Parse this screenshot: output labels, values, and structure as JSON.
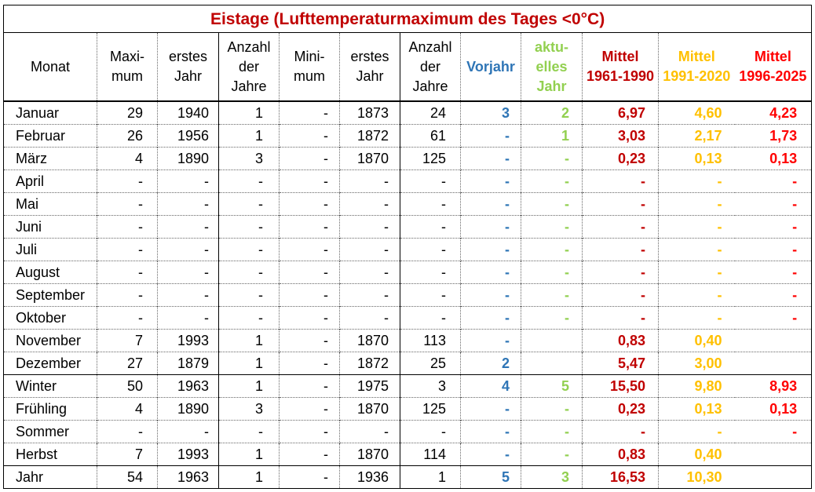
{
  "title": "Eistage (Lufttemperaturmaximum des Tages <0°C)",
  "colors": {
    "title": "#c00000",
    "vorjahr": "#2e75b6",
    "aktuell": "#92d050",
    "mittel_1961_1990": "#c00000",
    "mittel_1991_2020": "#ffc000",
    "mittel_1996_2025": "#ff0000"
  },
  "headers": [
    "Monat",
    "Maxi-\nmum",
    "erstes\nJahr",
    "Anzahl\nder\nJahre",
    "Mini-\nmum",
    "erstes\nJahr",
    "Anzahl\nder\nJahre",
    "Vorjahr",
    "aktu-\nelles\nJahr",
    "Mittel\n1961-1990",
    "Mittel\n1991-2020",
    "Mittel\n1996-2025"
  ],
  "rows": [
    [
      "Januar",
      "29",
      "1940",
      "1",
      "-",
      "1873",
      "24",
      "3",
      "2",
      "6,97",
      "4,60",
      "4,23"
    ],
    [
      "Februar",
      "26",
      "1956",
      "1",
      "-",
      "1872",
      "61",
      "-",
      "1",
      "3,03",
      "2,17",
      "1,73"
    ],
    [
      "März",
      "4",
      "1890",
      "3",
      "-",
      "1870",
      "125",
      "-",
      "-",
      "0,23",
      "0,13",
      "0,13"
    ],
    [
      "April",
      "-",
      "-",
      "-",
      "-",
      "-",
      "-",
      "-",
      "-",
      "-",
      "-",
      "-"
    ],
    [
      "Mai",
      "-",
      "-",
      "-",
      "-",
      "-",
      "-",
      "-",
      "-",
      "-",
      "-",
      "-"
    ],
    [
      "Juni",
      "-",
      "-",
      "-",
      "-",
      "-",
      "-",
      "-",
      "-",
      "-",
      "-",
      "-"
    ],
    [
      "Juli",
      "-",
      "-",
      "-",
      "-",
      "-",
      "-",
      "-",
      "-",
      "-",
      "-",
      "-"
    ],
    [
      "August",
      "-",
      "-",
      "-",
      "-",
      "-",
      "-",
      "-",
      "-",
      "-",
      "-",
      "-"
    ],
    [
      "September",
      "-",
      "-",
      "-",
      "-",
      "-",
      "-",
      "-",
      "-",
      "-",
      "-",
      "-"
    ],
    [
      "Oktober",
      "-",
      "-",
      "-",
      "-",
      "-",
      "-",
      "-",
      "-",
      "-",
      "-",
      "-"
    ],
    [
      "November",
      "7",
      "1993",
      "1",
      "-",
      "1870",
      "113",
      "-",
      "",
      "0,83",
      "0,40",
      ""
    ],
    [
      "Dezember",
      "27",
      "1879",
      "1",
      "-",
      "1872",
      "25",
      "2",
      "",
      "5,47",
      "3,00",
      ""
    ],
    [
      "Winter",
      "50",
      "1963",
      "1",
      "-",
      "1975",
      "3",
      "4",
      "5",
      "15,50",
      "9,80",
      "8,93"
    ],
    [
      "Frühling",
      "4",
      "1890",
      "3",
      "-",
      "1870",
      "125",
      "-",
      "-",
      "0,23",
      "0,13",
      "0,13"
    ],
    [
      "Sommer",
      "-",
      "-",
      "-",
      "-",
      "-",
      "-",
      "-",
      "-",
      "-",
      "-",
      "-"
    ],
    [
      "Herbst",
      "7",
      "1993",
      "1",
      "-",
      "1870",
      "114",
      "-",
      "-",
      "0,83",
      "0,40",
      ""
    ],
    [
      "Jahr",
      "54",
      "1963",
      "1",
      "-",
      "1936",
      "1",
      "5",
      "3",
      "16,53",
      "10,30",
      ""
    ]
  ]
}
